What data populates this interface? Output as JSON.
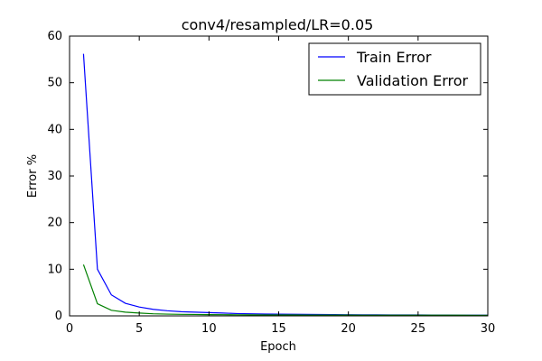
{
  "chart_data": {
    "type": "line",
    "title": "conv4/resampled/LR=0.05",
    "xlabel": "Epoch",
    "ylabel": "Error %",
    "xlim": [
      0,
      30
    ],
    "ylim": [
      0,
      60
    ],
    "xticks": [
      0,
      5,
      10,
      15,
      20,
      25,
      30
    ],
    "yticks": [
      0,
      10,
      20,
      30,
      40,
      50,
      60
    ],
    "grid": false,
    "legend_position": "top-right",
    "x": [
      1,
      2,
      3,
      4,
      5,
      6,
      7,
      8,
      9,
      10,
      11,
      12,
      13,
      14,
      15,
      16,
      17,
      18,
      19,
      20,
      21,
      22,
      23,
      24,
      25,
      26,
      27,
      28,
      29,
      30
    ],
    "series": [
      {
        "name": "Train Error",
        "color": "#0000ff",
        "values": [
          56.2,
          10.0,
          4.5,
          2.7,
          1.9,
          1.4,
          1.1,
          0.9,
          0.8,
          0.7,
          0.6,
          0.5,
          0.45,
          0.4,
          0.37,
          0.34,
          0.31,
          0.29,
          0.27,
          0.25,
          0.23,
          0.22,
          0.21,
          0.2,
          0.19,
          0.18,
          0.17,
          0.16,
          0.15,
          0.15
        ]
      },
      {
        "name": "Validation Error",
        "color": "#008000",
        "values": [
          11.0,
          2.6,
          1.2,
          0.8,
          0.6,
          0.45,
          0.38,
          0.33,
          0.3,
          0.27,
          0.25,
          0.23,
          0.22,
          0.21,
          0.2,
          0.19,
          0.18,
          0.18,
          0.17,
          0.17,
          0.16,
          0.16,
          0.15,
          0.15,
          0.15,
          0.14,
          0.14,
          0.14,
          0.13,
          0.13
        ]
      }
    ]
  }
}
